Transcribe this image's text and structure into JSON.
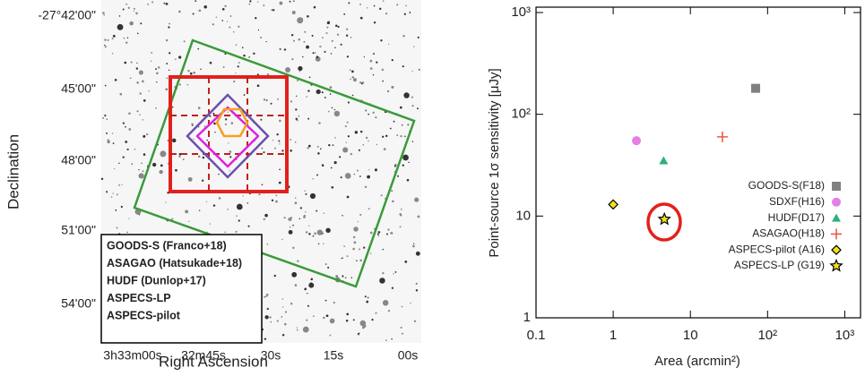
{
  "sky_map": {
    "x_label": "Right Ascension",
    "y_label": "Declination",
    "ra_ticks": [
      "3h33m00s",
      "32m45s",
      "30s",
      "15s",
      "00s"
    ],
    "dec_ticks": [
      "-27°42'00\"",
      "45'00\"",
      "48'00\"",
      "51'00\"",
      "54'00\""
    ],
    "legend": [
      {
        "label": "GOODS-S (Franco+18)",
        "color": "#2ca02c"
      },
      {
        "label": "ASAGAO (Hatsukade+18)",
        "color": "#e8221c"
      },
      {
        "label": "HUDF (Dunlop+17)",
        "color": "#1f6fc0"
      },
      {
        "label": "ASPECS-LP",
        "color": "#e020e0"
      },
      {
        "label": "ASPECS-pilot",
        "color": "#f5a020"
      }
    ]
  },
  "chart_data": {
    "type": "scatter",
    "x_label": "Area (arcmin²)",
    "y_label": "Point-source 1σ sensitivity [μJy]",
    "log_x": true,
    "log_y": true,
    "xlim": [
      0.1,
      1600
    ],
    "ylim": [
      1,
      1000
    ],
    "xticks": [
      0.1,
      1,
      10,
      {
        "value": 100,
        "label": "10²"
      },
      {
        "value": 1000,
        "label": "10³"
      }
    ],
    "yticks": [
      1,
      10,
      {
        "value": 100,
        "label": "10²"
      },
      {
        "value": 1000,
        "label": "10³"
      }
    ],
    "legend_position": "right",
    "series": [
      {
        "name": "GOODS-S(F18)",
        "color": "#808080",
        "marker": "square",
        "x": [
          70
        ],
        "values": [
          180
        ]
      },
      {
        "name": "SDXF(H16)",
        "color": "#e67ee6",
        "marker": "circle",
        "x": [
          2
        ],
        "values": [
          55
        ]
      },
      {
        "name": "HUDF(D17)",
        "color": "#2eb07a",
        "marker": "triangle",
        "x": [
          4.5
        ],
        "values": [
          35
        ]
      },
      {
        "name": "ASAGAO(H18)",
        "color": "#f05a4a",
        "marker": "plus",
        "x": [
          26
        ],
        "values": [
          60
        ]
      },
      {
        "name": "ASPECS-pilot (A16)",
        "color": "#f2e21a",
        "marker": "diamond",
        "x": [
          1
        ],
        "values": [
          13
        ]
      },
      {
        "name": "ASPECS-LP (G19)",
        "color": "#f2e21a",
        "marker": "star",
        "x": [
          4.6
        ],
        "values": [
          9.3
        ]
      }
    ]
  }
}
